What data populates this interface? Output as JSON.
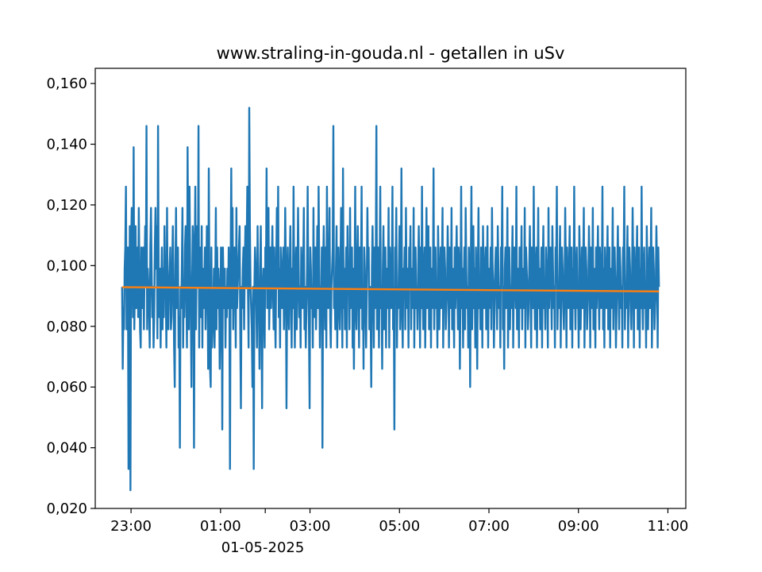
{
  "chart_data": {
    "type": "line",
    "title": "www.straling-in-gouda.nl - getallen in uSv",
    "xlabel": "",
    "ylabel": "",
    "date_label": "01-05-2025",
    "x_start": "22:48",
    "x_end": "10:48",
    "ylim": [
      0.02,
      0.165
    ],
    "y_ticks": [
      {
        "value": 0.02,
        "label": "0,020"
      },
      {
        "value": 0.04,
        "label": "0,040"
      },
      {
        "value": 0.06,
        "label": "0,060"
      },
      {
        "value": 0.08,
        "label": "0,080"
      },
      {
        "value": 0.1,
        "label": "0,100"
      },
      {
        "value": 0.12,
        "label": "0,120"
      },
      {
        "value": 0.14,
        "label": "0,140"
      },
      {
        "value": 0.16,
        "label": "0,160"
      }
    ],
    "x_ticks": [
      {
        "time": "23:00",
        "label": "23:00"
      },
      {
        "time": "01:00",
        "label": "01:00"
      },
      {
        "time": "02:00",
        "label": ""
      },
      {
        "time": "03:00",
        "label": "03:00"
      },
      {
        "time": "05:00",
        "label": "05:00"
      },
      {
        "time": "07:00",
        "label": "07:00"
      },
      {
        "time": "09:00",
        "label": "09:00"
      },
      {
        "time": "11:00",
        "label": "11:00"
      }
    ],
    "grid": false,
    "series": [
      {
        "color": "#1f77b4",
        "values": [
          0.093,
          0.066,
          0.086,
          0.079,
          0.099,
          0.106,
          0.126,
          0.079,
          0.093,
          0.106,
          0.033,
          0.079,
          0.113,
          0.026,
          0.106,
          0.119,
          0.099,
          0.083,
          0.139,
          0.079,
          0.093,
          0.113,
          0.086,
          0.099,
          0.106,
          0.083,
          0.119,
          0.099,
          0.079,
          0.073,
          0.106,
          0.093,
          0.086,
          0.106,
          0.079,
          0.099,
          0.113,
          0.093,
          0.146,
          0.079,
          0.099,
          0.093,
          0.086,
          0.073,
          0.106,
          0.119,
          0.099,
          0.083,
          0.093,
          0.073,
          0.083,
          0.106,
          0.119,
          0.099,
          0.113,
          0.076,
          0.146,
          0.093,
          0.083,
          0.099,
          0.073,
          0.093,
          0.106,
          0.079,
          0.099,
          0.083,
          0.113,
          0.099,
          0.093,
          0.073,
          0.119,
          0.086,
          0.079,
          0.093,
          0.099,
          0.106,
          0.079,
          0.083,
          0.099,
          0.113,
          0.093,
          0.073,
          0.06,
          0.099,
          0.119,
          0.086,
          0.093,
          0.106,
          0.073,
          0.083,
          0.04,
          0.093,
          0.086,
          0.099,
          0.119,
          0.073,
          0.093,
          0.083,
          0.106,
          0.113,
          0.093,
          0.073,
          0.139,
          0.099,
          0.079,
          0.126,
          0.099,
          0.086,
          0.06,
          0.093,
          0.113,
          0.106,
          0.04,
          0.099,
          0.126,
          0.079,
          0.099,
          0.113,
          0.093,
          0.146,
          0.073,
          0.106,
          0.093,
          0.083,
          0.113,
          0.073,
          0.099,
          0.086,
          0.093,
          0.106,
          0.079,
          0.093,
          0.113,
          0.099,
          0.066,
          0.132,
          0.093,
          0.066,
          0.06,
          0.106,
          0.073,
          0.079,
          0.086,
          0.099,
          0.073,
          0.093,
          0.119,
          0.079,
          0.106,
          0.086,
          0.099,
          0.093,
          0.066,
          0.079,
          0.106,
          0.099,
          0.046,
          0.106,
          0.093,
          0.086,
          0.099,
          0.073,
          0.093,
          0.083,
          0.099,
          0.086,
          0.106,
          0.093,
          0.033,
          0.099,
          0.132,
          0.086,
          0.119,
          0.079,
          0.099,
          0.106,
          0.093,
          0.073,
          0.119,
          0.086,
          0.093,
          0.099,
          0.106,
          0.113,
          0.079,
          0.053,
          0.093,
          0.086,
          0.099,
          0.106,
          0.079,
          0.099,
          0.113,
          0.093,
          0.106,
          0.126,
          0.093,
          0.073,
          0.152,
          0.113,
          0.093,
          0.086,
          0.079,
          0.06,
          0.093,
          0.033,
          0.093,
          0.106,
          0.099,
          0.086,
          0.073,
          0.113,
          0.093,
          0.086,
          0.066,
          0.099,
          0.113,
          0.083,
          0.053,
          0.093,
          0.099,
          0.086,
          0.073,
          0.106,
          0.093,
          0.132,
          0.086,
          0.099,
          0.119,
          0.079,
          0.093,
          0.106,
          0.086,
          0.099,
          0.113,
          0.093,
          0.079,
          0.106,
          0.086,
          0.073,
          0.099,
          0.119,
          0.093,
          0.126,
          0.083,
          0.099,
          0.073,
          0.106,
          0.093,
          0.086,
          0.099,
          0.106,
          0.079,
          0.093,
          0.119,
          0.099,
          0.053,
          0.093,
          0.106,
          0.086,
          0.079,
          0.099,
          0.113,
          0.093,
          0.073,
          0.099,
          0.086,
          0.126,
          0.093,
          0.073,
          0.099,
          0.106,
          0.079,
          0.093,
          0.119,
          0.099,
          0.083,
          0.093,
          0.073,
          0.106,
          0.093,
          0.086,
          0.099,
          0.119,
          0.079,
          0.093,
          0.073,
          0.086,
          0.099,
          0.126,
          0.093,
          0.079,
          0.053,
          0.106,
          0.099,
          0.086,
          0.093,
          0.073,
          0.119,
          0.083,
          0.099,
          0.106,
          0.079,
          0.093,
          0.113,
          0.086,
          0.126,
          0.099,
          0.073,
          0.093,
          0.086,
          0.106,
          0.04,
          0.099,
          0.113,
          0.093,
          0.079,
          0.106,
          0.073,
          0.126,
          0.093,
          0.086,
          0.099,
          0.119,
          0.083,
          0.073,
          0.093,
          0.099,
          0.106,
          0.146,
          0.086,
          0.093,
          0.079,
          0.099,
          0.113,
          0.073,
          0.093,
          0.106,
          0.086,
          0.079,
          0.099,
          0.119,
          0.093,
          0.073,
          0.132,
          0.086,
          0.099,
          0.079,
          0.093,
          0.106,
          0.073,
          0.113,
          0.093,
          0.099,
          0.079,
          0.119,
          0.086,
          0.093,
          0.106,
          0.073,
          0.099,
          0.066,
          0.093,
          0.126,
          0.086,
          0.079,
          0.099,
          0.113,
          0.093,
          0.073,
          0.106,
          0.086,
          0.099,
          0.126,
          0.079,
          0.093,
          0.066,
          0.106,
          0.099,
          0.086,
          0.073,
          0.093,
          0.119,
          0.099,
          0.106,
          0.079,
          0.093,
          0.086,
          0.06,
          0.099,
          0.113,
          0.093,
          0.073,
          0.106,
          0.086,
          0.099,
          0.146,
          0.079,
          0.093,
          0.106,
          0.073,
          0.099,
          0.126,
          0.086,
          0.093,
          0.066,
          0.099,
          0.113,
          0.079,
          0.093,
          0.106,
          0.073,
          0.099,
          0.086,
          0.093,
          0.119,
          0.073,
          0.106,
          0.093,
          0.086,
          0.099,
          0.126,
          0.079,
          0.093,
          0.046,
          0.106,
          0.099,
          0.119,
          0.073,
          0.093,
          0.086,
          0.099,
          0.113,
          0.079,
          0.093,
          0.132,
          0.086,
          0.073,
          0.099,
          0.093,
          0.106,
          0.079,
          0.119,
          0.093,
          0.086,
          0.099,
          0.073,
          0.106,
          0.093,
          0.113,
          0.079,
          0.099,
          0.086,
          0.093,
          0.119,
          0.073,
          0.099,
          0.106,
          0.086,
          0.093,
          0.079,
          0.099,
          0.113,
          0.093,
          0.073,
          0.106,
          0.086,
          0.126,
          0.093,
          0.079,
          0.099,
          0.106,
          0.073,
          0.093,
          0.119,
          0.086,
          0.099,
          0.113,
          0.079,
          0.093,
          0.106,
          0.073,
          0.099,
          0.086,
          0.093,
          0.132,
          0.079,
          0.099,
          0.106,
          0.086,
          0.093,
          0.073,
          0.113,
          0.099,
          0.079,
          0.093,
          0.106,
          0.086,
          0.099,
          0.119,
          0.073,
          0.093,
          0.106,
          0.099,
          0.079,
          0.086,
          0.093,
          0.113,
          0.099,
          0.073,
          0.106,
          0.093,
          0.086,
          0.119,
          0.079,
          0.099,
          0.093,
          0.073,
          0.106,
          0.086,
          0.099,
          0.113,
          0.093,
          0.079,
          0.106,
          0.099,
          0.066,
          0.093,
          0.126,
          0.086,
          0.099,
          0.073,
          0.093,
          0.106,
          0.079,
          0.119,
          0.099,
          0.086,
          0.093,
          0.073,
          0.106,
          0.093,
          0.06,
          0.099,
          0.126,
          0.079,
          0.093,
          0.113,
          0.086,
          0.099,
          0.073,
          0.106,
          0.093,
          0.066,
          0.099,
          0.119,
          0.086,
          0.093,
          0.079,
          0.106,
          0.099,
          0.073,
          0.113,
          0.093,
          0.086,
          0.099,
          0.106,
          0.079,
          0.093,
          0.113,
          0.073,
          0.099,
          0.086,
          0.093,
          0.106,
          0.079,
          0.119,
          0.099,
          0.093,
          0.073,
          0.086,
          0.099,
          0.106,
          0.093,
          0.079,
          0.113,
          0.099,
          0.086,
          0.093,
          0.073,
          0.106,
          0.099,
          0.126,
          0.079,
          0.093,
          0.066,
          0.099,
          0.106,
          0.086,
          0.093,
          0.119,
          0.073,
          0.099,
          0.106,
          0.079,
          0.093,
          0.086,
          0.099,
          0.113,
          0.073,
          0.093,
          0.106,
          0.099,
          0.086,
          0.126,
          0.079,
          0.093,
          0.099,
          0.073,
          0.106,
          0.086,
          0.093,
          0.113,
          0.079,
          0.099,
          0.093,
          0.086,
          0.119,
          0.073,
          0.106,
          0.099,
          0.093,
          0.079,
          0.086,
          0.099,
          0.113,
          0.093,
          0.073,
          0.106,
          0.099,
          0.086,
          0.126,
          0.093,
          0.079,
          0.099,
          0.106,
          0.073,
          0.093,
          0.119,
          0.086,
          0.099,
          0.079,
          0.093,
          0.106,
          0.073,
          0.099,
          0.113,
          0.086,
          0.093,
          0.079,
          0.106,
          0.099,
          0.093,
          0.073,
          0.119,
          0.086,
          0.099,
          0.106,
          0.093,
          0.079,
          0.113,
          0.099,
          0.086,
          0.093,
          0.073,
          0.106,
          0.099,
          0.126,
          0.079,
          0.093,
          0.086,
          0.099,
          0.113,
          0.073,
          0.093,
          0.106,
          0.099,
          0.086,
          0.079,
          0.093,
          0.119,
          0.099,
          0.073,
          0.106,
          0.093,
          0.086,
          0.099,
          0.113,
          0.079,
          0.093,
          0.106,
          0.073,
          0.099,
          0.086,
          0.126,
          0.093,
          0.079,
          0.099,
          0.106,
          0.086,
          0.093,
          0.073,
          0.113,
          0.099,
          0.079,
          0.093,
          0.106,
          0.086,
          0.099,
          0.119,
          0.073,
          0.093,
          0.106,
          0.099,
          0.079,
          0.086,
          0.093,
          0.113,
          0.099,
          0.073,
          0.106,
          0.093,
          0.086,
          0.119,
          0.079,
          0.099,
          0.093,
          0.073,
          0.106,
          0.086,
          0.099,
          0.113,
          0.093,
          0.079,
          0.106,
          0.099,
          0.086,
          0.093,
          0.126,
          0.079,
          0.099,
          0.073,
          0.106,
          0.093,
          0.086,
          0.099,
          0.113,
          0.079,
          0.093,
          0.106,
          0.073,
          0.099,
          0.086,
          0.093,
          0.119,
          0.079,
          0.099,
          0.106,
          0.093,
          0.073,
          0.086,
          0.099,
          0.113,
          0.093,
          0.079,
          0.106,
          0.099,
          0.086,
          0.093,
          0.073,
          0.106,
          0.099,
          0.126,
          0.079,
          0.093,
          0.086,
          0.099,
          0.113,
          0.073,
          0.093,
          0.106,
          0.099,
          0.086,
          0.079,
          0.093,
          0.119,
          0.099,
          0.073,
          0.106,
          0.093,
          0.086,
          0.099,
          0.113,
          0.079,
          0.093,
          0.106,
          0.073,
          0.099,
          0.086,
          0.126,
          0.093,
          0.079,
          0.099,
          0.106,
          0.086,
          0.093,
          0.073,
          0.113,
          0.099,
          0.079,
          0.093,
          0.106,
          0.086,
          0.099,
          0.119,
          0.073,
          0.093,
          0.106,
          0.099,
          0.079,
          0.086,
          0.093,
          0.113,
          0.099,
          0.073,
          0.106,
          0.093
        ]
      },
      {
        "color": "#ff7f0e",
        "trend_start": 0.0929,
        "trend_end": 0.0915
      }
    ]
  }
}
